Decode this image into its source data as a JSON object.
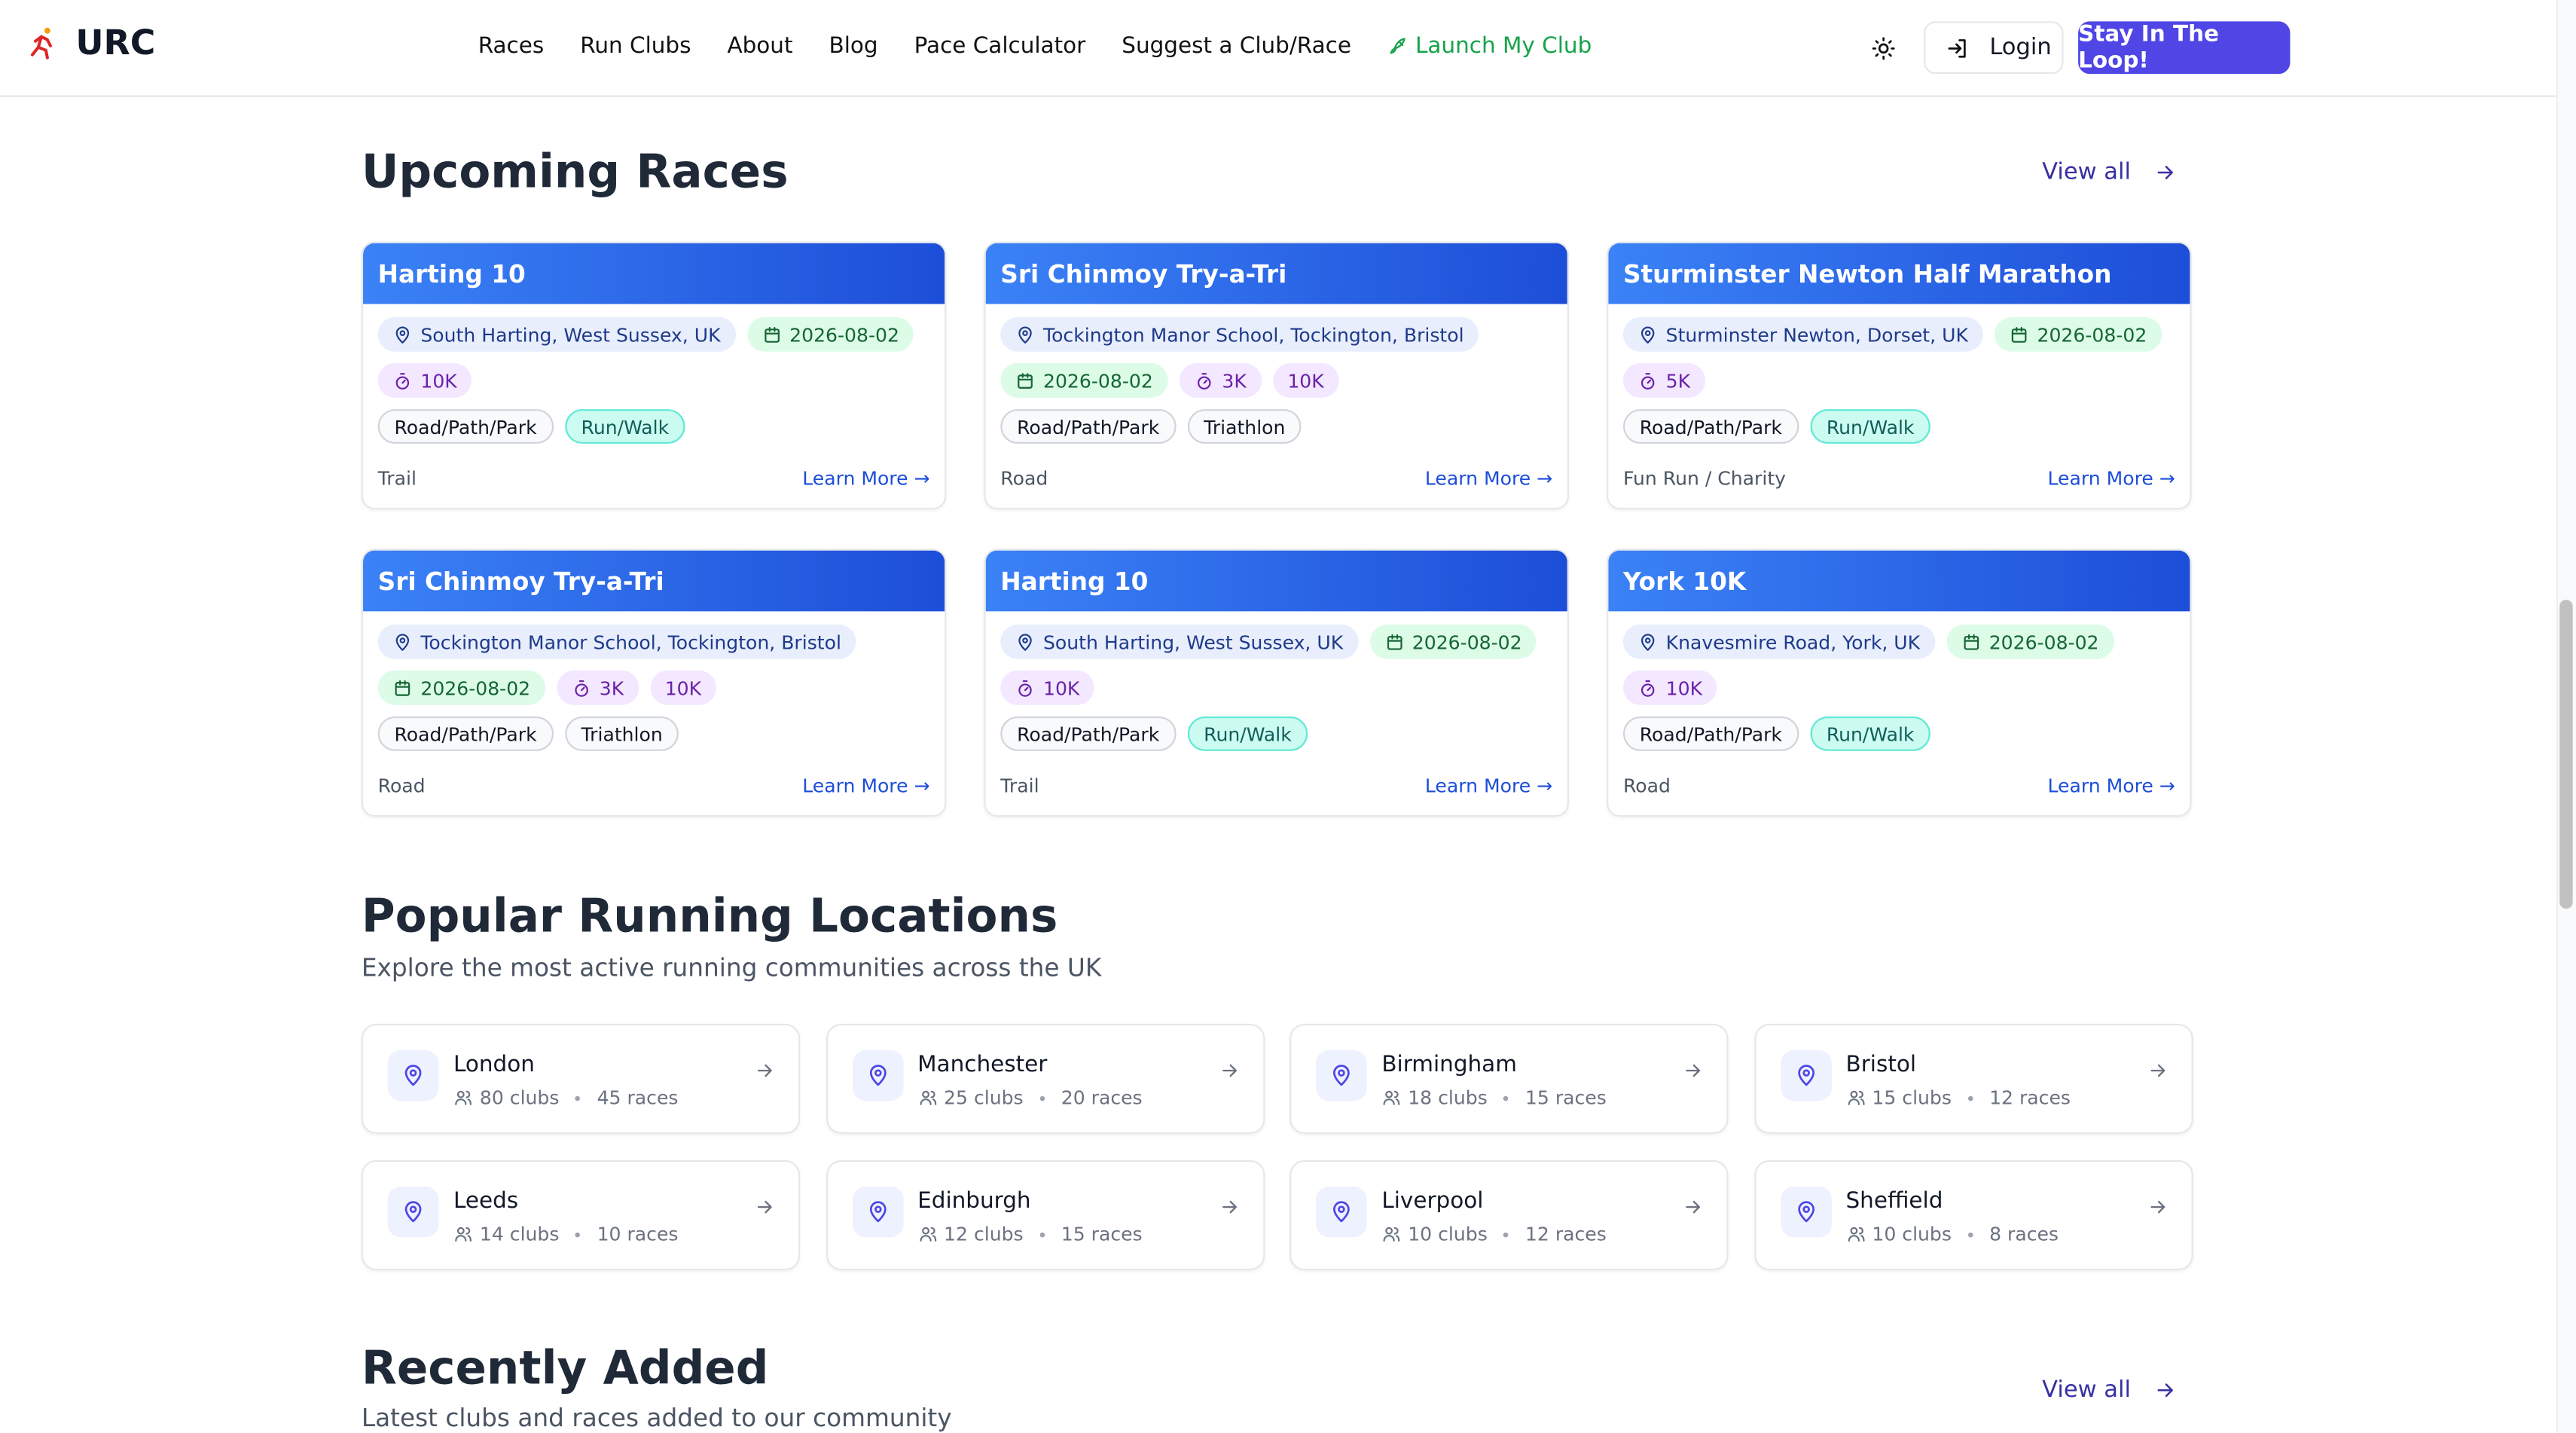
{
  "brand": "URC",
  "nav": [
    "Races",
    "Run Clubs",
    "About",
    "Blog",
    "Pace Calculator",
    "Suggest a Club/Race",
    "Launch My Club"
  ],
  "actions": {
    "login": "Login",
    "cta": "Stay In The Loop!"
  },
  "upcoming": {
    "title": "Upcoming Races",
    "view_all": "View all",
    "learn_more": "Learn More →",
    "races": [
      {
        "name": "Harting 10",
        "location": "South Harting, West Sussex, UK",
        "date": "2026-08-02",
        "distances": [
          "10K"
        ],
        "tags": [
          {
            "label": "Road/Path/Park",
            "color": "gray"
          },
          {
            "label": "Run/Walk",
            "color": "teal"
          }
        ],
        "type": "Trail"
      },
      {
        "name": "Sri Chinmoy Try-a-Tri",
        "location": "Tockington Manor School, Tockington, Bristol",
        "date": "2026-08-02",
        "distances": [
          "3K",
          "10K"
        ],
        "tags": [
          {
            "label": "Road/Path/Park",
            "color": "gray"
          },
          {
            "label": "Triathlon",
            "color": "gray"
          }
        ],
        "type": "Road"
      },
      {
        "name": "Sturminster Newton Half Marathon",
        "location": "Sturminster Newton, Dorset, UK",
        "date": "2026-08-02",
        "distances": [
          "5K"
        ],
        "tags": [
          {
            "label": "Road/Path/Park",
            "color": "gray"
          },
          {
            "label": "Run/Walk",
            "color": "teal"
          }
        ],
        "type": "Fun Run / Charity"
      },
      {
        "name": "Sri Chinmoy Try-a-Tri",
        "location": "Tockington Manor School, Tockington, Bristol",
        "date": "2026-08-02",
        "distances": [
          "3K",
          "10K"
        ],
        "tags": [
          {
            "label": "Road/Path/Park",
            "color": "gray"
          },
          {
            "label": "Triathlon",
            "color": "gray"
          }
        ],
        "type": "Road"
      },
      {
        "name": "Harting 10",
        "location": "South Harting, West Sussex, UK",
        "date": "2026-08-02",
        "distances": [
          "10K"
        ],
        "tags": [
          {
            "label": "Road/Path/Park",
            "color": "gray"
          },
          {
            "label": "Run/Walk",
            "color": "teal"
          }
        ],
        "type": "Trail"
      },
      {
        "name": "York 10K",
        "location": "Knavesmire Road, York, UK",
        "date": "2026-08-02",
        "distances": [
          "10K"
        ],
        "tags": [
          {
            "label": "Road/Path/Park",
            "color": "gray"
          },
          {
            "label": "Run/Walk",
            "color": "teal"
          }
        ],
        "type": "Road"
      }
    ]
  },
  "locations": {
    "title": "Popular Running Locations",
    "subtitle": "Explore the most active running communities across the UK",
    "items": [
      {
        "name": "London",
        "clubs": "80 clubs",
        "races": "45 races"
      },
      {
        "name": "Manchester",
        "clubs": "25 clubs",
        "races": "20 races"
      },
      {
        "name": "Birmingham",
        "clubs": "18 clubs",
        "races": "15 races"
      },
      {
        "name": "Bristol",
        "clubs": "15 clubs",
        "races": "12 races"
      },
      {
        "name": "Leeds",
        "clubs": "14 clubs",
        "races": "10 races"
      },
      {
        "name": "Edinburgh",
        "clubs": "12 clubs",
        "races": "15 races"
      },
      {
        "name": "Liverpool",
        "clubs": "10 clubs",
        "races": "12 races"
      },
      {
        "name": "Sheffield",
        "clubs": "10 clubs",
        "races": "8 races"
      }
    ]
  },
  "recent": {
    "title": "Recently Added",
    "subtitle": "Latest clubs and races added to our community",
    "view_all": "View all"
  }
}
